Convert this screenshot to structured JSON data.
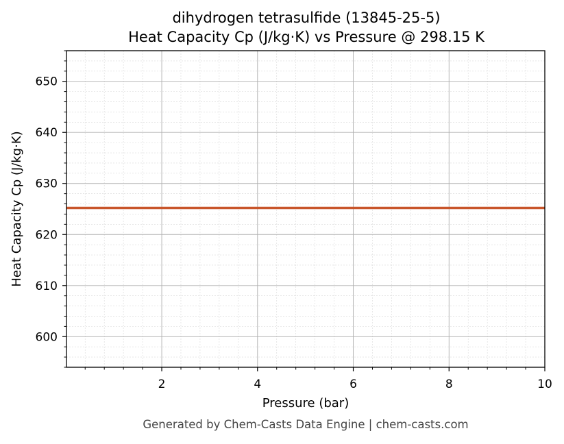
{
  "footer": "Generated by Chem-Casts Data Engine | chem-casts.com",
  "chart_data": {
    "type": "line",
    "title_line1": "dihydrogen tetrasulfide (13845-25-5)",
    "title_line2": "Heat Capacity Cp (J/kg·K) vs Pressure @ 298.15 K",
    "xlabel": "Pressure (bar)",
    "ylabel": "Heat Capacity Cp (J/kg·K)",
    "xlim": [
      0.01,
      10
    ],
    "ylim": [
      594,
      656
    ],
    "xticks": [
      2,
      4,
      6,
      8,
      10
    ],
    "yticks": [
      600,
      610,
      620,
      630,
      640,
      650
    ],
    "grid": true,
    "series": [
      {
        "color": "#c8552a",
        "x": [
          0.01,
          2,
          4,
          6,
          8,
          10
        ],
        "y": [
          625.2,
          625.2,
          625.2,
          625.2,
          625.2,
          625.2
        ]
      }
    ]
  }
}
